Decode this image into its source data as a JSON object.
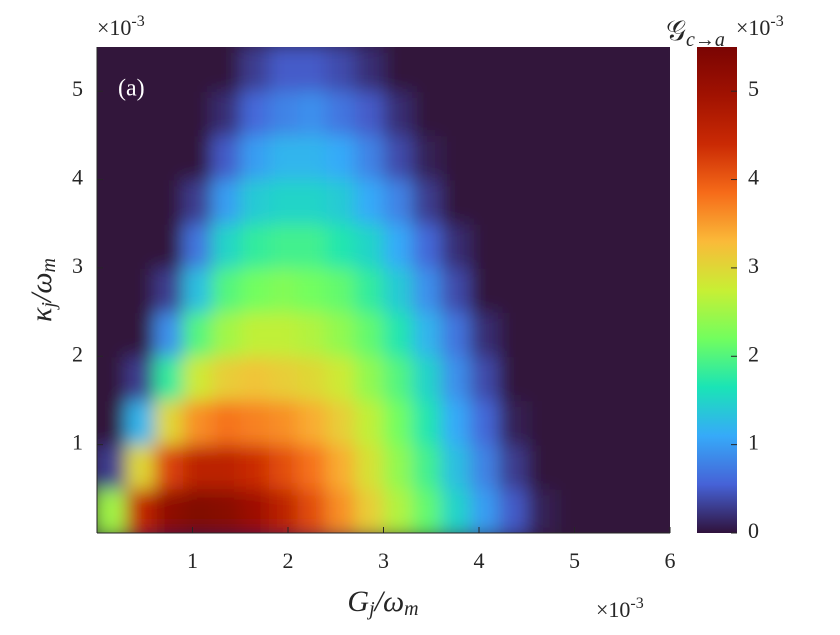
{
  "chart_data": {
    "type": "heatmap",
    "annotation": "(a)",
    "xlabel": [
      {
        "t": "G",
        "sub": false
      },
      {
        "t": "j",
        "sub": true
      },
      {
        "t": "/ω",
        "sub": false
      },
      {
        "t": "m",
        "sub": true
      }
    ],
    "ylabel": [
      {
        "t": "κ",
        "sub": false
      },
      {
        "t": "j",
        "sub": true
      },
      {
        "t": "/ω",
        "sub": false
      },
      {
        "t": "m",
        "sub": true
      }
    ],
    "x_multiplier": {
      "base": "×10",
      "exp": "-3"
    },
    "y_multiplier": {
      "base": "×10",
      "exp": "-3"
    },
    "colorbar_label": {
      "main": "𝒢",
      "sub": "c→a",
      "base": "×10",
      "exp": "-3"
    },
    "xlim": [
      0,
      6
    ],
    "xticks": [
      1,
      2,
      3,
      4,
      5,
      6
    ],
    "ylim": [
      0,
      5.5
    ],
    "yticks": [
      1,
      2,
      3,
      4,
      5
    ],
    "clim": [
      0,
      5.5
    ],
    "cticks": [
      0,
      1,
      2,
      3,
      4,
      5
    ],
    "colormap": [
      "#30123b",
      "#4662d7",
      "#36aaf9",
      "#1ae4b6",
      "#72fe5e",
      "#c8ef34",
      "#faba39",
      "#f66b19",
      "#ca2a04",
      "#a11201",
      "#7a0403"
    ],
    "x": [
      0.15,
      0.45,
      0.75,
      1.05,
      1.35,
      1.65,
      1.95,
      2.25,
      2.55,
      2.85,
      3.15,
      3.45,
      3.75,
      4.05,
      4.35,
      4.65,
      4.95,
      5.25,
      5.55,
      5.85
    ],
    "y": [
      0.25,
      0.75,
      1.25,
      1.75,
      2.25,
      2.75,
      3.25,
      3.75,
      4.25,
      4.75,
      5.25
    ],
    "z": [
      [
        2.5,
        4.5,
        5.2,
        5.4,
        5.3,
        5.0,
        4.6,
        4.1,
        3.6,
        3.1,
        2.6,
        2.1,
        1.5,
        1.0,
        0.5,
        0.1,
        0,
        0,
        0,
        0
      ],
      [
        0.3,
        3.0,
        4.2,
        4.6,
        4.6,
        4.4,
        4.1,
        3.8,
        3.4,
        2.9,
        2.4,
        1.9,
        1.3,
        0.8,
        0.3,
        0,
        0,
        0,
        0,
        0
      ],
      [
        0,
        1.2,
        3.0,
        3.6,
        3.8,
        3.7,
        3.6,
        3.4,
        3.1,
        2.7,
        2.2,
        1.7,
        1.1,
        0.6,
        0.1,
        0,
        0,
        0,
        0,
        0
      ],
      [
        0,
        0.3,
        1.8,
        2.8,
        3.1,
        3.2,
        3.1,
        3.0,
        2.8,
        2.4,
        2.0,
        1.5,
        0.9,
        0.4,
        0,
        0,
        0,
        0,
        0,
        0
      ],
      [
        0,
        0,
        0.9,
        2.0,
        2.5,
        2.7,
        2.7,
        2.6,
        2.4,
        2.1,
        1.7,
        1.2,
        0.7,
        0.2,
        0,
        0,
        0,
        0,
        0,
        0
      ],
      [
        0,
        0,
        0.3,
        1.3,
        2.0,
        2.2,
        2.3,
        2.2,
        2.1,
        1.8,
        1.4,
        0.9,
        0.4,
        0,
        0,
        0,
        0,
        0,
        0,
        0
      ],
      [
        0,
        0,
        0,
        0.7,
        1.5,
        1.8,
        1.9,
        1.9,
        1.7,
        1.5,
        1.1,
        0.6,
        0.2,
        0,
        0,
        0,
        0,
        0,
        0,
        0
      ],
      [
        0,
        0,
        0,
        0.3,
        1.0,
        1.4,
        1.5,
        1.5,
        1.4,
        1.1,
        0.8,
        0.3,
        0,
        0,
        0,
        0,
        0,
        0,
        0,
        0
      ],
      [
        0,
        0,
        0,
        0,
        0.5,
        1.0,
        1.2,
        1.2,
        1.1,
        0.8,
        0.4,
        0.1,
        0,
        0,
        0,
        0,
        0,
        0,
        0,
        0
      ],
      [
        0,
        0,
        0,
        0,
        0.2,
        0.6,
        0.8,
        0.9,
        0.7,
        0.5,
        0.2,
        0,
        0,
        0,
        0,
        0,
        0,
        0,
        0,
        0
      ],
      [
        0,
        0,
        0,
        0,
        0,
        0.3,
        0.5,
        0.5,
        0.4,
        0.2,
        0,
        0,
        0,
        0,
        0,
        0,
        0,
        0,
        0,
        0
      ]
    ]
  }
}
